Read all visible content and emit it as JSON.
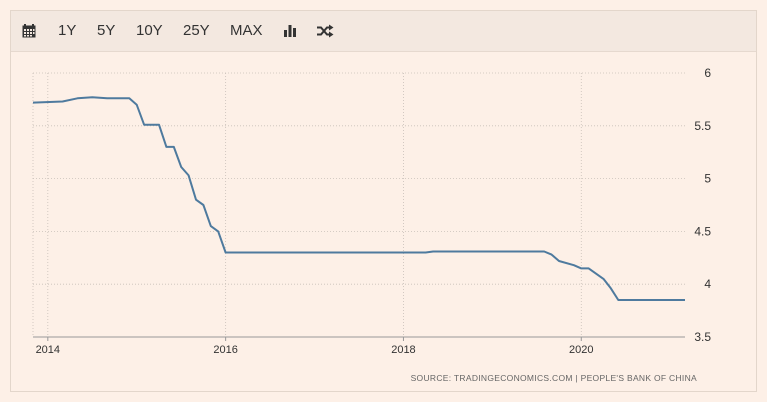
{
  "toolbar": {
    "icons": [
      "calendar-icon",
      "bar-chart-icon",
      "shuffle-icon"
    ],
    "ranges": [
      "1Y",
      "5Y",
      "10Y",
      "25Y",
      "MAX"
    ]
  },
  "source_text": "SOURCE: TRADINGECONOMICS.COM  |  PEOPLE'S BANK OF CHINA",
  "colors": {
    "line": "#4e7a9e",
    "background": "#fdf0e7",
    "grid": "#c8bfb8"
  },
  "chart_data": {
    "type": "line",
    "title": "",
    "xlabel": "",
    "ylabel": "",
    "xlim": [
      "2013-11",
      "2021-03"
    ],
    "ylim": [
      3.5,
      6
    ],
    "x_ticks": [
      "2014",
      "2016",
      "2018",
      "2020"
    ],
    "y_ticks": [
      "3.5",
      "4",
      "4.5",
      "5",
      "5.5",
      "6"
    ],
    "grid": true,
    "legend": "none",
    "series": [
      {
        "values": [
          [
            "2013-11-01",
            5.72
          ],
          [
            "2014-03-01",
            5.73
          ],
          [
            "2014-05-01",
            5.76
          ],
          [
            "2014-07-01",
            5.77
          ],
          [
            "2014-09-01",
            5.76
          ],
          [
            "2014-12-01",
            5.76
          ],
          [
            "2015-01-01",
            5.7
          ],
          [
            "2015-02-01",
            5.51
          ],
          [
            "2015-04-01",
            5.51
          ],
          [
            "2015-05-01",
            5.3
          ],
          [
            "2015-06-01",
            5.3
          ],
          [
            "2015-07-01",
            5.11
          ],
          [
            "2015-08-01",
            5.03
          ],
          [
            "2015-09-01",
            4.8
          ],
          [
            "2015-10-01",
            4.75
          ],
          [
            "2015-11-01",
            4.55
          ],
          [
            "2015-12-01",
            4.5
          ],
          [
            "2016-01-01",
            4.3
          ],
          [
            "2017-12-01",
            4.3
          ],
          [
            "2018-04-01",
            4.3
          ],
          [
            "2018-05-01",
            4.31
          ],
          [
            "2019-08-01",
            4.31
          ],
          [
            "2019-09-01",
            4.28
          ],
          [
            "2019-10-01",
            4.22
          ],
          [
            "2019-12-01",
            4.18
          ],
          [
            "2020-01-01",
            4.15
          ],
          [
            "2020-02-01",
            4.15
          ],
          [
            "2020-04-01",
            4.05
          ],
          [
            "2020-05-01",
            3.96
          ],
          [
            "2020-06-01",
            3.85
          ],
          [
            "2021-03-01",
            3.85
          ]
        ]
      }
    ]
  }
}
